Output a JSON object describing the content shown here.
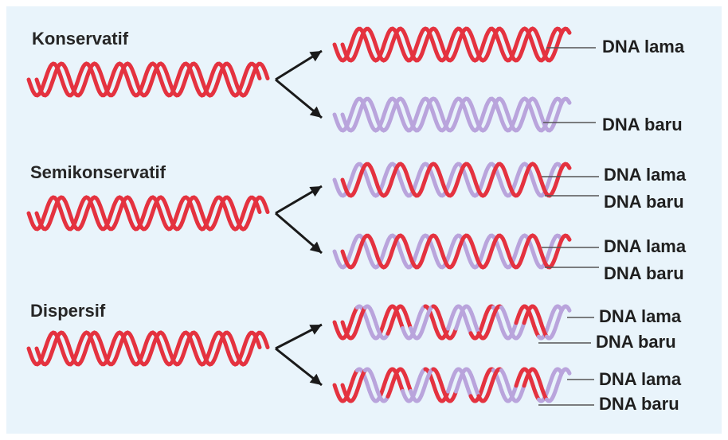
{
  "colors": {
    "background": "#e9f4fb",
    "old_strand": "#e4323f",
    "new_strand": "#b9a4dc",
    "arrow": "#1a1a1a",
    "leader_line": "#555555"
  },
  "models": [
    {
      "title": "Konservatif",
      "products": [
        {
          "strands": [
            "old",
            "old"
          ],
          "labels": [
            "DNA lama"
          ]
        },
        {
          "strands": [
            "new",
            "new"
          ],
          "labels": [
            "DNA baru"
          ]
        }
      ]
    },
    {
      "title": "Semikonservatif",
      "products": [
        {
          "strands": [
            "old",
            "new"
          ],
          "labels": [
            "DNA lama",
            "DNA baru"
          ]
        },
        {
          "strands": [
            "old",
            "new"
          ],
          "labels": [
            "DNA lama",
            "DNA baru"
          ]
        }
      ]
    },
    {
      "title": "Dispersif",
      "products": [
        {
          "strands": [
            "mixed",
            "mixed"
          ],
          "labels": [
            "DNA lama",
            "DNA baru"
          ]
        },
        {
          "strands": [
            "mixed",
            "mixed"
          ],
          "labels": [
            "DNA lama",
            "DNA baru"
          ]
        }
      ]
    }
  ]
}
